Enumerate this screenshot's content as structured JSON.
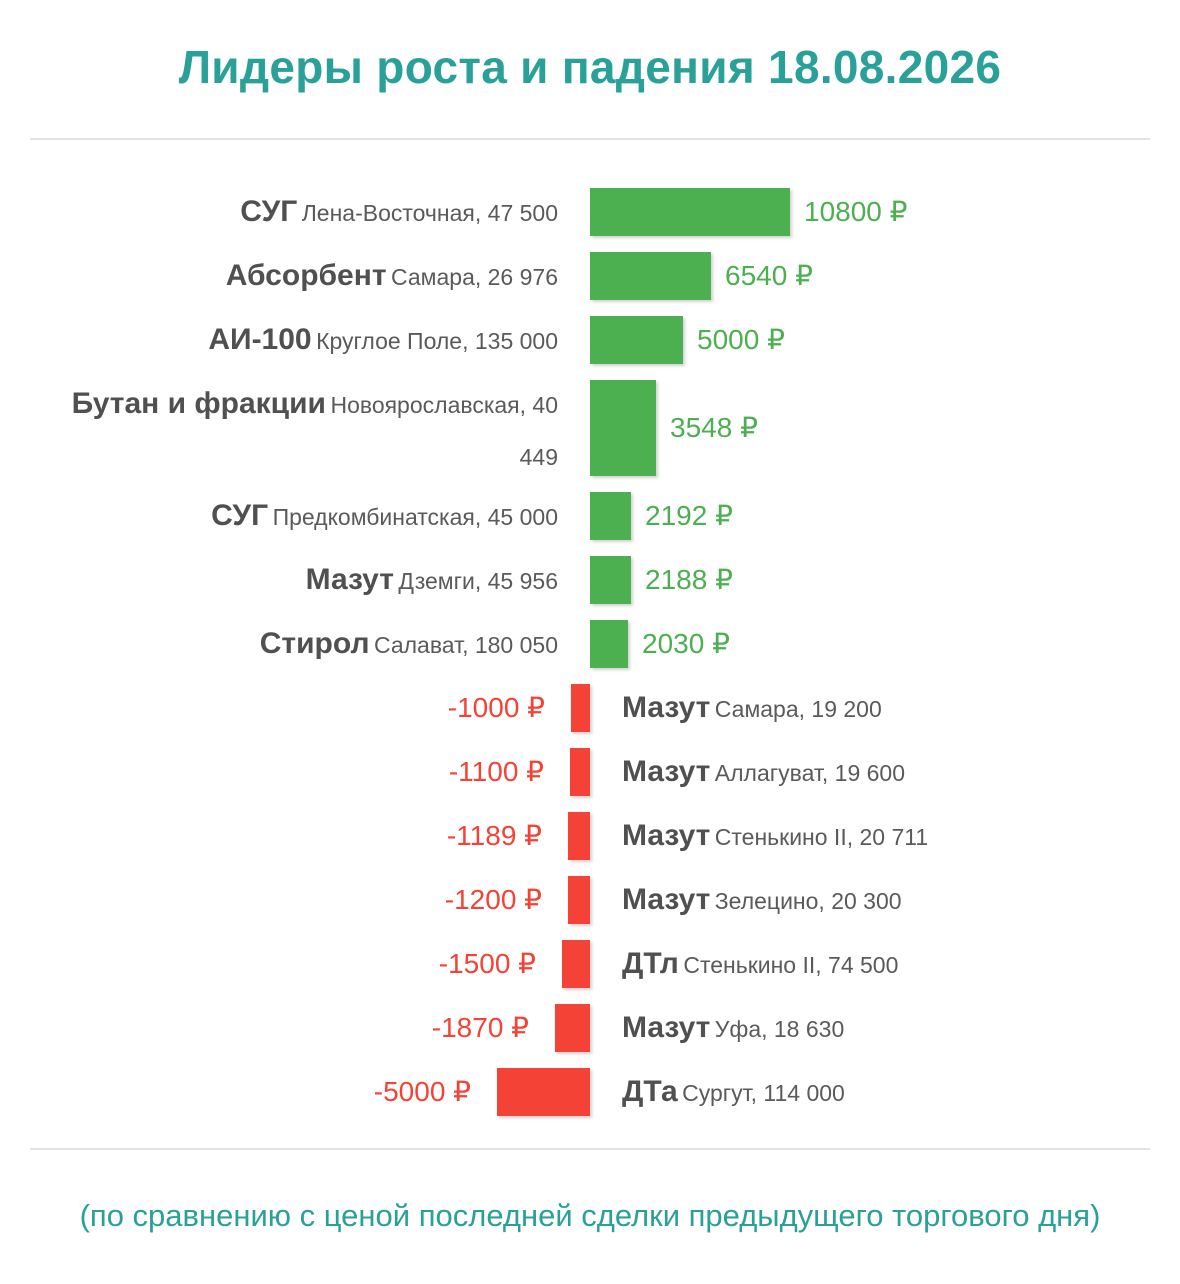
{
  "title": "Лидеры роста и падения 18.08.2026",
  "footnote": "(по сравнению с ценой последней сделки предыдущего торгового дня)",
  "colors": {
    "accent": "#2aa198",
    "up": "#4caf50",
    "down": "#f44336"
  },
  "chart_data": {
    "type": "bar",
    "orientation": "horizontal",
    "unit": "₽",
    "rows": [
      {
        "product": "СУГ",
        "place": "Лена-Восточная, 47 500",
        "value": 10800,
        "label": "10800 ₽"
      },
      {
        "product": "Абсорбент",
        "place": "Самара, 26 976",
        "value": 6540,
        "label": "6540 ₽"
      },
      {
        "product": "АИ-100",
        "place": "Круглое Поле, 135 000",
        "value": 5000,
        "label": "5000 ₽"
      },
      {
        "product": "Бутан и фракции",
        "place": "Новоярославская, 40 449",
        "value": 3548,
        "label": "3548 ₽"
      },
      {
        "product": "СУГ",
        "place": "Предкомбинатская, 45 000",
        "value": 2192,
        "label": "2192 ₽"
      },
      {
        "product": "Мазут",
        "place": "Дземги, 45 956",
        "value": 2188,
        "label": "2188 ₽"
      },
      {
        "product": "Стирол",
        "place": "Салават, 180 050",
        "value": 2030,
        "label": "2030 ₽"
      },
      {
        "product": "Мазут",
        "place": "Самара, 19 200",
        "value": -1000,
        "label": "-1000 ₽"
      },
      {
        "product": "Мазут",
        "place": "Аллагуват, 19 600",
        "value": -1100,
        "label": "-1100 ₽"
      },
      {
        "product": "Мазут",
        "place": "Стенькино II, 20 711",
        "value": -1189,
        "label": "-1189 ₽"
      },
      {
        "product": "Мазут",
        "place": "Зелецино, 20 300",
        "value": -1200,
        "label": "-1200 ₽"
      },
      {
        "product": "ДТл",
        "place": "Стенькино II, 74 500",
        "value": -1500,
        "label": "-1500 ₽"
      },
      {
        "product": "Мазут",
        "place": "Уфа, 18 630",
        "value": -1870,
        "label": "-1870 ₽"
      },
      {
        "product": "ДТа",
        "place": "Сургут, 114 000",
        "value": -5000,
        "label": "-5000 ₽"
      }
    ]
  }
}
